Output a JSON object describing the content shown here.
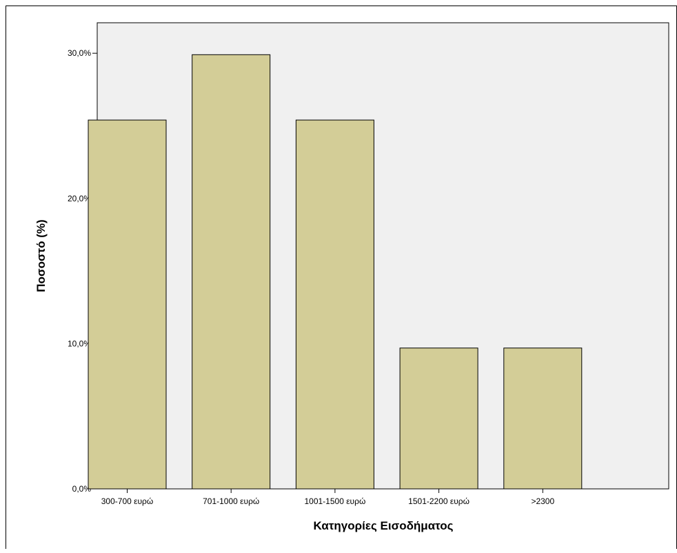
{
  "chart_data": {
    "type": "bar",
    "categories": [
      "300-700 ευρώ",
      "701-1000 ευρώ",
      "1001-1500 ευρώ",
      "1501-2200 ευρώ",
      ">2300"
    ],
    "values": [
      25.4,
      29.9,
      25.4,
      9.7,
      9.7
    ],
    "xlabel": "Κατηγορίες Εισοδήματος",
    "ylabel": "Ποσοστό (%)",
    "ylim": [
      0,
      32.5
    ],
    "yticks": [
      0,
      10,
      20,
      30
    ],
    "ytick_labels": [
      "0,0%",
      "10,0%",
      "20,0%",
      "30,0%"
    ],
    "grid": false,
    "legend": "none",
    "colors": {
      "bar_fill": "#d3cd97",
      "bar_stroke": "#000000",
      "plot_background": "#f0f0f0"
    }
  }
}
